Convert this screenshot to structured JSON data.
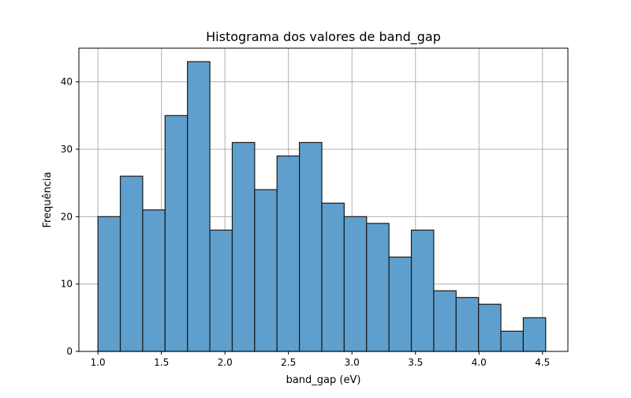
{
  "chart_data": {
    "type": "bar",
    "title": "Histograma dos valores de band_gap",
    "xlabel": "band_gap (eV)",
    "ylabel": "Frequência",
    "xlim": [
      0.85,
      4.7
    ],
    "ylim": [
      0,
      45
    ],
    "xticks": [
      "1.0",
      "1.5",
      "2.0",
      "2.5",
      "3.0",
      "3.5",
      "4.0",
      "4.5"
    ],
    "yticks": [
      "0",
      "10",
      "20",
      "30",
      "40"
    ],
    "grid": true,
    "bar_color": "#5f9fcd",
    "edge_color": "#1a1a1a",
    "bins": {
      "start": 1.0,
      "end": 4.525,
      "count": 20
    },
    "values": [
      20,
      26,
      21,
      35,
      43,
      18,
      31,
      24,
      29,
      31,
      22,
      20,
      19,
      14,
      18,
      9,
      8,
      7,
      3,
      5
    ]
  }
}
